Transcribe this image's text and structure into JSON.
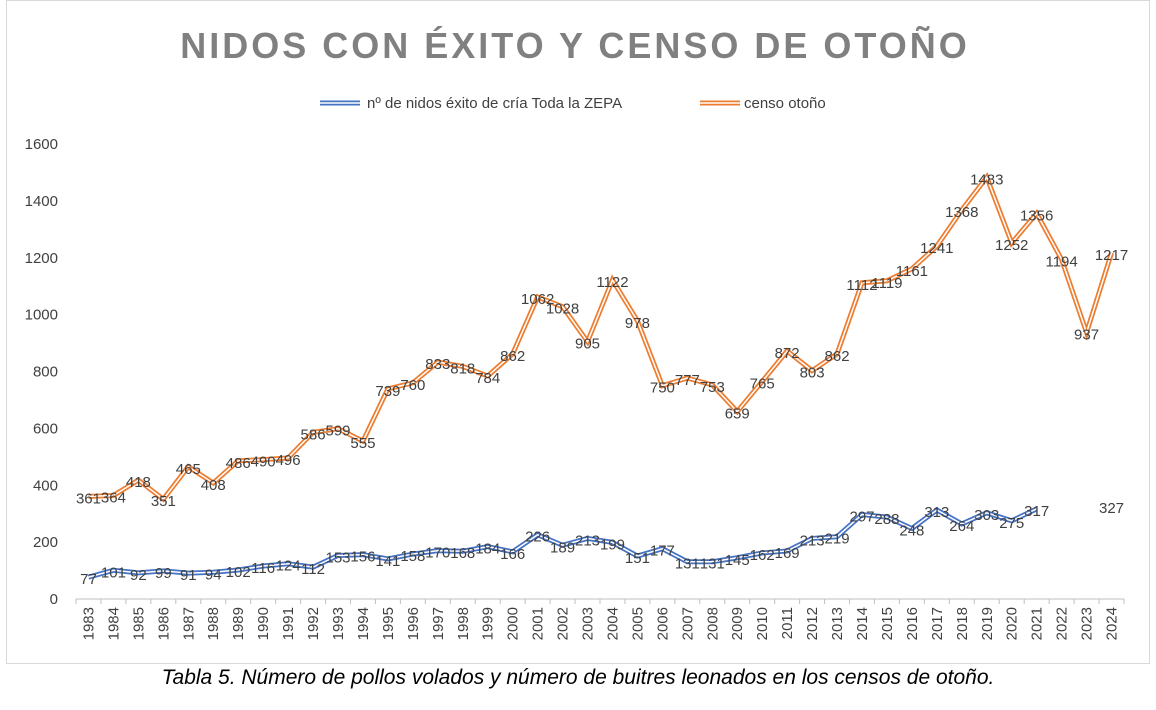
{
  "chart_data": {
    "type": "line",
    "title": "NIDOS CON ÉXITO Y CENSO DE OTOÑO",
    "categories": [
      "1983",
      "1984",
      "1985",
      "1986",
      "1987",
      "1988",
      "1989",
      "1990",
      "1991",
      "1992",
      "1993",
      "1994",
      "1995",
      "1996",
      "1997",
      "1998",
      "1999",
      "2000",
      "2001",
      "2002",
      "2003",
      "2004",
      "2005",
      "2006",
      "2007",
      "2008",
      "2009",
      "2010",
      "2011",
      "2012",
      "2013",
      "2014",
      "2015",
      "2016",
      "2017",
      "2018",
      "2019",
      "2020",
      "2021",
      "2022",
      "2023",
      "2024"
    ],
    "series": [
      {
        "name": "nº de nidos éxito de cría Toda la ZEPA",
        "color": "#4472c4",
        "values": [
          77,
          101,
          92,
          99,
          91,
          94,
          102,
          116,
          124,
          112,
          153,
          156,
          141,
          158,
          170,
          168,
          184,
          166,
          226,
          189,
          213,
          199,
          151,
          177,
          131,
          131,
          145,
          162,
          169,
          213,
          219,
          297,
          288,
          248,
          313,
          264,
          303,
          275,
          317,
          null,
          null,
          null
        ],
        "extra_labels": [
          {
            "category": "2024",
            "value": 327
          }
        ]
      },
      {
        "name": "censo otoño",
        "color": "#ed7d31",
        "values": [
          361,
          364,
          418,
          351,
          465,
          408,
          486,
          490,
          496,
          586,
          599,
          555,
          739,
          760,
          833,
          818,
          784,
          862,
          1062,
          1028,
          905,
          1122,
          978,
          750,
          777,
          753,
          659,
          765,
          872,
          803,
          862,
          1112,
          1119,
          1161,
          1241,
          1368,
          1483,
          1252,
          1356,
          1194,
          937,
          1217
        ]
      }
    ],
    "ylim": [
      0,
      1600
    ],
    "yticks": [
      0,
      200,
      400,
      600,
      800,
      1000,
      1200,
      1400,
      1600
    ],
    "xlabel": "",
    "ylabel": "",
    "legend_position": "top",
    "grid": false
  },
  "caption": "Tabla 5. Número de pollos volados y número de buitres leonados en los censos de otoño."
}
